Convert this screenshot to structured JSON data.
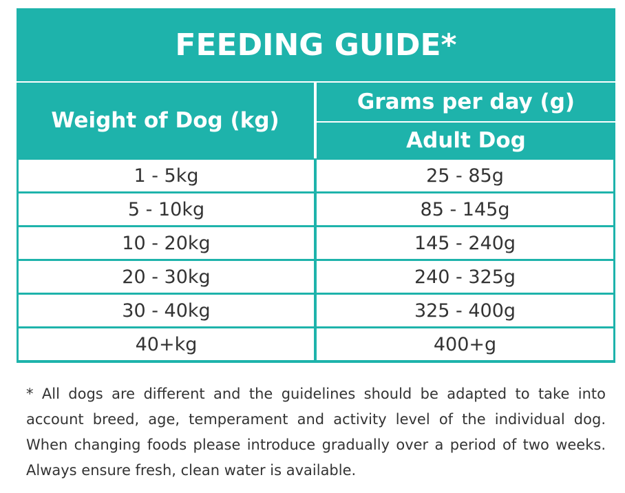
{
  "title": "FEEDING GUIDE*",
  "table": {
    "header": {
      "weight": "Weight of Dog (kg)",
      "grams": "Grams per day (g)",
      "adult": "Adult Dog"
    },
    "rows": [
      [
        "1 - 5kg",
        "25 - 85g"
      ],
      [
        "5 - 10kg",
        "85 - 145g"
      ],
      [
        "10 - 20kg",
        "145 - 240g"
      ],
      [
        "20 - 30kg",
        "240 - 325g"
      ],
      [
        "30 - 40kg",
        "325 - 400g"
      ],
      [
        "40+kg",
        "400+g"
      ]
    ]
  },
  "footnote": [
    "* All dogs are different and the guidelines should be adapted to take into",
    "account breed, age, temperament and activity level of the individual dog.",
    "When changing foods please introduce gradually over a period of two weeks.",
    "Always ensure fresh, clean water is available."
  ]
}
